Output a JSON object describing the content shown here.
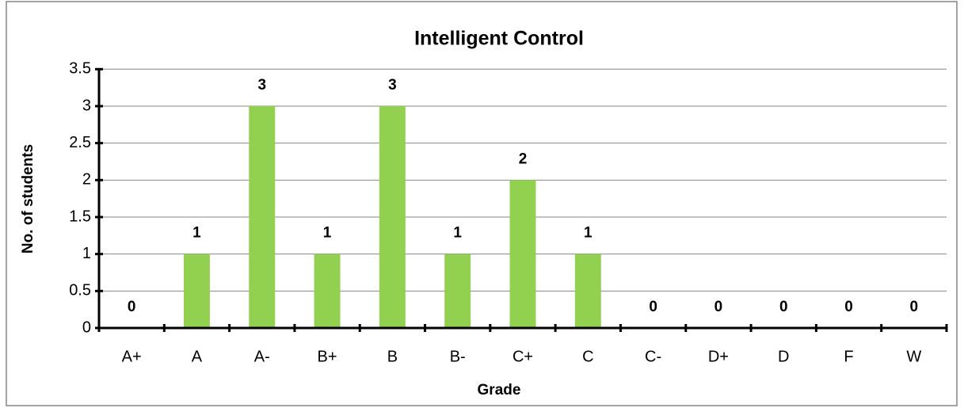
{
  "chart_data": {
    "type": "bar",
    "title": "Intelligent Control",
    "x_label": "Grade",
    "y_label": "No. of students",
    "categories": [
      "A+",
      "A",
      "A-",
      "B+",
      "B",
      "B-",
      "C+",
      "C",
      "C-",
      "D+",
      "D",
      "F",
      "W"
    ],
    "values": [
      0,
      1,
      3,
      1,
      3,
      1,
      2,
      1,
      0,
      0,
      0,
      0,
      0
    ],
    "color": "#92d050",
    "ylim": [
      0,
      3.5
    ],
    "yticks": [
      0,
      0.5,
      1,
      1.5,
      2,
      2.5,
      3,
      3.5
    ],
    "grid": true
  }
}
